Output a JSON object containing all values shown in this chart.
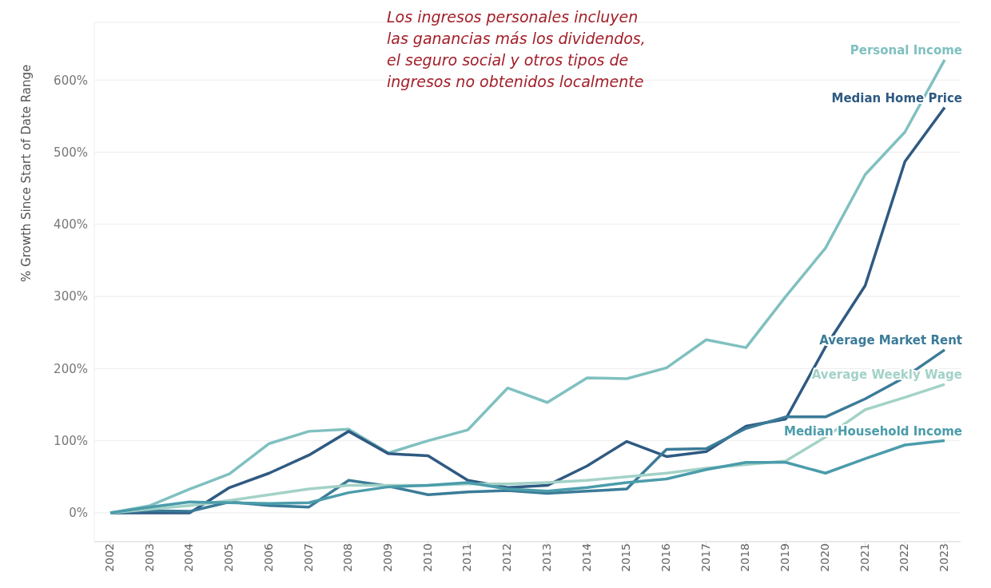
{
  "chart_data": {
    "type": "line",
    "ylabel": "% Growth Since Start of Date Range",
    "annotations": [
      "Los ingresos personales incluyen\nlas ganancias más los dividendos,\nel seguro social y otros tipos de\ningresos no obtenidos localmente"
    ],
    "categories": [
      "2002",
      "2003",
      "2004",
      "2005",
      "2006",
      "2007",
      "2008",
      "2009",
      "2010",
      "2011",
      "2012",
      "2013",
      "2014",
      "2015",
      "2016",
      "2017",
      "2018",
      "2019",
      "2020",
      "2021",
      "2022",
      "2023"
    ],
    "series": [
      {
        "name": "Personal Income",
        "color": "#80c0c0",
        "values": [
          0,
          10,
          33,
          54,
          96,
          113,
          116,
          83,
          100,
          115,
          173,
          153,
          187,
          186,
          201,
          240,
          229,
          300,
          367,
          469,
          528,
          628
        ]
      },
      {
        "name": "Median Home Price",
        "color": "#2f5a82",
        "values": [
          0,
          0,
          0,
          35,
          55,
          80,
          113,
          82,
          79,
          45,
          35,
          38,
          65,
          99,
          78,
          85,
          120,
          130,
          230,
          315,
          487,
          562
        ]
      },
      {
        "name": "Average Market Rent",
        "color": "#3b7b98",
        "values": [
          0,
          3,
          2,
          15,
          10,
          8,
          45,
          37,
          25,
          29,
          31,
          27,
          30,
          33,
          88,
          89,
          117,
          133,
          133,
          158,
          188,
          226
        ]
      },
      {
        "name": "Average Weekly Wage",
        "color": "#a3d2c7",
        "values": [
          0,
          5,
          10,
          17,
          25,
          33,
          38,
          38,
          38,
          40,
          40,
          42,
          45,
          50,
          55,
          62,
          67,
          72,
          105,
          143,
          160,
          178
        ]
      },
      {
        "name": "Median Household Income",
        "color": "#4b9cab",
        "values": [
          0,
          8,
          15,
          14,
          13,
          14,
          28,
          36,
          38,
          42,
          33,
          30,
          35,
          42,
          47,
          60,
          70,
          70,
          55,
          75,
          94,
          100
        ]
      }
    ],
    "ylim": [
      -40,
      680
    ],
    "yticks": [
      {
        "value": 0,
        "label": "0%"
      },
      {
        "value": 100,
        "label": "100%"
      },
      {
        "value": 200,
        "label": "200%"
      },
      {
        "value": 300,
        "label": "300%"
      },
      {
        "value": 400,
        "label": "400%"
      },
      {
        "value": 500,
        "label": "500%"
      },
      {
        "value": 600,
        "label": "600%"
      }
    ],
    "grid": "y",
    "legend": false,
    "marker": "none",
    "line_style": "solid"
  }
}
